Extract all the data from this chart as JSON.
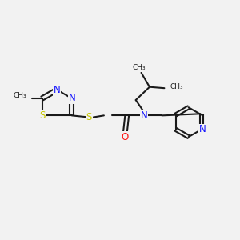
{
  "bg_color": "#f2f2f2",
  "bond_color": "#1a1a1a",
  "N_color": "#1414ff",
  "S_color": "#c8c800",
  "O_color": "#ff1414",
  "font_size": 7.5,
  "bond_width": 1.5,
  "figsize": [
    3.0,
    3.0
  ],
  "dpi": 100,
  "xlim": [
    0,
    10
  ],
  "ylim": [
    0,
    10
  ]
}
